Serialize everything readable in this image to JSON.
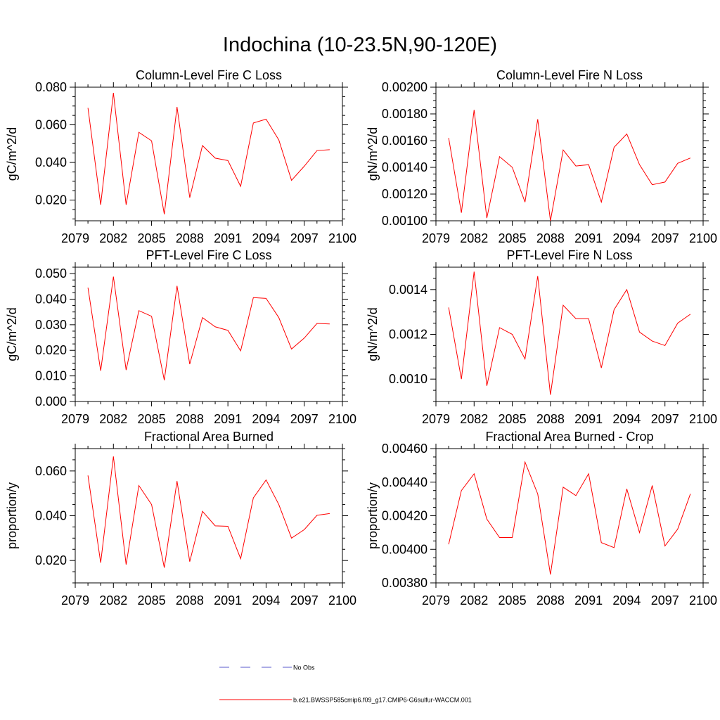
{
  "page": {
    "title": "Indochina (10-23.5N,90-120E)"
  },
  "legend": [
    {
      "label": "No Obs",
      "color": "#5a5acd",
      "dash": "dashed"
    },
    {
      "label": "b.e21.BWSSP585cmip6.f09_g17.CMIP6-G6sulfur-WACCM.001",
      "color": "#ff0000",
      "dash": "solid"
    }
  ],
  "chart_data": [
    {
      "type": "line",
      "title": "Column-Level Fire C Loss",
      "ylabel": "gC/m^2/d",
      "xlim": [
        2079,
        2100
      ],
      "ylim": [
        0.009,
        0.08
      ],
      "xticks": [
        2079,
        2082,
        2085,
        2088,
        2091,
        2094,
        2097,
        2100
      ],
      "yticks": [
        0.02,
        0.04,
        0.06,
        0.08
      ],
      "ytick_labels": [
        "0.020",
        "0.040",
        "0.060",
        "0.080"
      ],
      "yminor_step": 0.005,
      "x": [
        2080,
        2081,
        2082,
        2083,
        2084,
        2085,
        2086,
        2087,
        2088,
        2089,
        2090,
        2091,
        2092,
        2093,
        2094,
        2095,
        2096,
        2097,
        2098,
        2099
      ],
      "series": [
        {
          "color": "#ff0000",
          "values": [
            0.069,
            0.0175,
            0.077,
            0.0175,
            0.056,
            0.0515,
            0.0125,
            0.0695,
            0.0213,
            0.049,
            0.0423,
            0.041,
            0.0273,
            0.061,
            0.063,
            0.052,
            0.0305,
            0.038,
            0.0463,
            0.0468
          ]
        }
      ]
    },
    {
      "type": "line",
      "title": "Column-Level Fire N Loss",
      "ylabel": "gN/m^2/d",
      "xlim": [
        2079,
        2100
      ],
      "ylim": [
        0.001,
        0.002
      ],
      "xticks": [
        2079,
        2082,
        2085,
        2088,
        2091,
        2094,
        2097,
        2100
      ],
      "yticks": [
        0.001,
        0.0012,
        0.0014,
        0.0016,
        0.0018,
        0.002
      ],
      "ytick_labels": [
        "0.00100",
        "0.00120",
        "0.00140",
        "0.00160",
        "0.00180",
        "0.00200"
      ],
      "yminor_step": 5e-05,
      "x": [
        2080,
        2081,
        2082,
        2083,
        2084,
        2085,
        2086,
        2087,
        2088,
        2089,
        2090,
        2091,
        2092,
        2093,
        2094,
        2095,
        2096,
        2097,
        2098,
        2099
      ],
      "series": [
        {
          "color": "#ff0000",
          "values": [
            0.00162,
            0.00106,
            0.00183,
            0.00102,
            0.00148,
            0.0014,
            0.00114,
            0.00176,
            0.001,
            0.00153,
            0.00141,
            0.00142,
            0.00114,
            0.00155,
            0.00165,
            0.00142,
            0.00127,
            0.00129,
            0.00143,
            0.00147
          ]
        }
      ]
    },
    {
      "type": "line",
      "title": "PFT-Level Fire C Loss",
      "ylabel": "gC/m^2/d",
      "xlim": [
        2079,
        2100
      ],
      "ylim": [
        0.0,
        0.0525
      ],
      "xticks": [
        2079,
        2082,
        2085,
        2088,
        2091,
        2094,
        2097,
        2100
      ],
      "yticks": [
        0.0,
        0.01,
        0.02,
        0.03,
        0.04,
        0.05
      ],
      "ytick_labels": [
        "0.000",
        "0.010",
        "0.020",
        "0.030",
        "0.040",
        "0.050"
      ],
      "yminor_step": 0.0025,
      "x": [
        2080,
        2081,
        2082,
        2083,
        2084,
        2085,
        2086,
        2087,
        2088,
        2089,
        2090,
        2091,
        2092,
        2093,
        2094,
        2095,
        2096,
        2097,
        2098,
        2099
      ],
      "series": [
        {
          "color": "#ff0000",
          "values": [
            0.0445,
            0.012,
            0.0488,
            0.0123,
            0.0355,
            0.0333,
            0.0083,
            0.0452,
            0.0146,
            0.0328,
            0.0292,
            0.0278,
            0.0198,
            0.0406,
            0.0403,
            0.0328,
            0.0205,
            0.0248,
            0.0305,
            0.0303
          ]
        }
      ]
    },
    {
      "type": "line",
      "title": "PFT-Level Fire N Loss",
      "ylabel": "gN/m^2/d",
      "xlim": [
        2079,
        2100
      ],
      "ylim": [
        0.0009,
        0.0015
      ],
      "xticks": [
        2079,
        2082,
        2085,
        2088,
        2091,
        2094,
        2097,
        2100
      ],
      "yticks": [
        0.001,
        0.0012,
        0.0014
      ],
      "ytick_labels": [
        "0.0010",
        "0.0012",
        "0.0014"
      ],
      "yminor_step": 5e-05,
      "x": [
        2080,
        2081,
        2082,
        2083,
        2084,
        2085,
        2086,
        2087,
        2088,
        2089,
        2090,
        2091,
        2092,
        2093,
        2094,
        2095,
        2096,
        2097,
        2098,
        2099
      ],
      "series": [
        {
          "color": "#ff0000",
          "values": [
            0.00132,
            0.001,
            0.00148,
            0.00097,
            0.00123,
            0.0012,
            0.00109,
            0.00146,
            0.00093,
            0.00133,
            0.00127,
            0.00127,
            0.00105,
            0.00131,
            0.0014,
            0.00121,
            0.00117,
            0.00115,
            0.00125,
            0.00129
          ]
        }
      ]
    },
    {
      "type": "line",
      "title": "Fractional Area Burned",
      "ylabel": "proportion/y",
      "xlim": [
        2079,
        2100
      ],
      "ylim": [
        0.01,
        0.07
      ],
      "xticks": [
        2079,
        2082,
        2085,
        2088,
        2091,
        2094,
        2097,
        2100
      ],
      "yticks": [
        0.02,
        0.04,
        0.06
      ],
      "ytick_labels": [
        "0.020",
        "0.040",
        "0.060"
      ],
      "yminor_step": 0.005,
      "x": [
        2080,
        2081,
        2082,
        2083,
        2084,
        2085,
        2086,
        2087,
        2088,
        2089,
        2090,
        2091,
        2092,
        2093,
        2094,
        2095,
        2096,
        2097,
        2098,
        2099
      ],
      "series": [
        {
          "color": "#ff0000",
          "values": [
            0.058,
            0.019,
            0.0665,
            0.0182,
            0.0535,
            0.045,
            0.0168,
            0.0555,
            0.0195,
            0.042,
            0.0355,
            0.0353,
            0.0208,
            0.048,
            0.056,
            0.045,
            0.03,
            0.0338,
            0.0402,
            0.041
          ]
        }
      ]
    },
    {
      "type": "line",
      "title": "Fractional Area Burned - Crop",
      "ylabel": "proportion/y",
      "xlim": [
        2079,
        2100
      ],
      "ylim": [
        0.0038,
        0.0046
      ],
      "xticks": [
        2079,
        2082,
        2085,
        2088,
        2091,
        2094,
        2097,
        2100
      ],
      "yticks": [
        0.0038,
        0.004,
        0.0042,
        0.0044,
        0.0046
      ],
      "ytick_labels": [
        "0.00380",
        "0.00400",
        "0.00420",
        "0.00440",
        "0.00460"
      ],
      "yminor_step": 5e-05,
      "x": [
        2080,
        2081,
        2082,
        2083,
        2084,
        2085,
        2086,
        2087,
        2088,
        2089,
        2090,
        2091,
        2092,
        2093,
        2094,
        2095,
        2096,
        2097,
        2098,
        2099
      ],
      "series": [
        {
          "color": "#ff0000",
          "values": [
            0.00403,
            0.00435,
            0.00445,
            0.00418,
            0.00407,
            0.00407,
            0.00452,
            0.00433,
            0.00385,
            0.00437,
            0.00432,
            0.00445,
            0.00404,
            0.00401,
            0.00436,
            0.0041,
            0.00438,
            0.00402,
            0.00412,
            0.00433
          ]
        }
      ]
    }
  ]
}
